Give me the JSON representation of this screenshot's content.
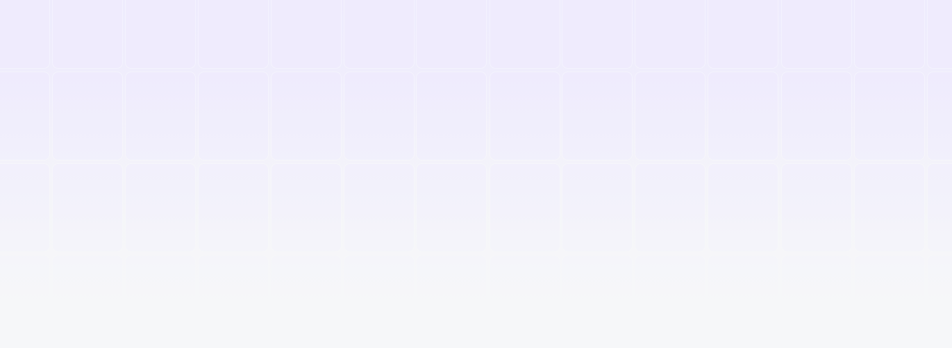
{
  "page": {
    "background_color": "#f6f7f9",
    "tile_color": "#eeebfd",
    "divider_color": "#ffffff",
    "pattern": "rounded-tile-grid"
  }
}
